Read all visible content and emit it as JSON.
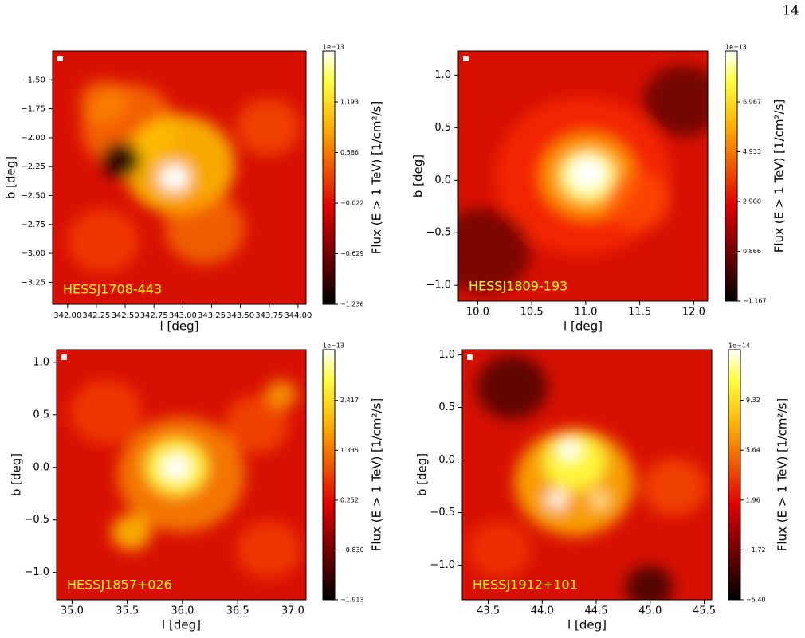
{
  "page_number": "14",
  "chart_data": [
    {
      "type": "heatmap",
      "source": "HESSJ1708-443",
      "xlabel": "l [deg]",
      "ylabel": "b [deg]",
      "colorbar_label": "Flux (E > 1 TeV) [1/cm²/s]",
      "colorbar_offset": "1e−13",
      "xlim": [
        341.87,
        344.07
      ],
      "ylim": [
        -3.44,
        -1.25
      ],
      "xticks": [
        {
          "value": 342,
          "label": "342.00"
        },
        {
          "value": 342.25,
          "label": "342.25"
        },
        {
          "value": 342.5,
          "label": "342.50"
        },
        {
          "value": 342.75,
          "label": "342.75"
        },
        {
          "value": 343,
          "label": "343.00"
        },
        {
          "value": 343.25,
          "label": "343.25"
        },
        {
          "value": 343.5,
          "label": "343.50"
        },
        {
          "value": 343.75,
          "label": "343.75"
        },
        {
          "value": 344,
          "label": "344.00"
        }
      ],
      "yticks": [
        {
          "value": -1.5,
          "label": "−1.50"
        },
        {
          "value": -1.75,
          "label": "−1.75"
        },
        {
          "value": -2,
          "label": "−2.00"
        },
        {
          "value": -2.25,
          "label": "−2.25"
        },
        {
          "value": -2.5,
          "label": "−2.50"
        },
        {
          "value": -2.75,
          "label": "−2.75"
        },
        {
          "value": -3,
          "label": "−3.00"
        },
        {
          "value": -3.25,
          "label": "−3.25"
        }
      ],
      "clim": [
        -1.236,
        1.805
      ],
      "cticks": [
        {
          "value": -1.236,
          "label": "−1.236"
        },
        {
          "value": -0.629,
          "label": "−0.629"
        },
        {
          "value": -0.022,
          "label": "−0.022"
        },
        0.586,
        1.193
      ]
    },
    {
      "type": "heatmap",
      "source": "HESSJ1809-193",
      "xlabel": "l [deg]",
      "ylabel": "b [deg]",
      "colorbar_label": "Flux (E > 1 TeV) [1/cm²/s]",
      "colorbar_offset": "1e−13",
      "xlim": [
        9.82,
        12.13
      ],
      "ylim": [
        -1.15,
        1.23
      ],
      "xticks": [
        {
          "value": 10,
          "label": "10.0"
        },
        10.5,
        {
          "value": 11,
          "label": "11.0"
        },
        11.5,
        {
          "value": 12,
          "label": "12.0"
        }
      ],
      "yticks": [
        {
          "value": -1,
          "label": "−1.0"
        },
        {
          "value": -0.5,
          "label": "−0.5"
        },
        {
          "value": 0,
          "label": "0.0"
        },
        0.5,
        {
          "value": 1,
          "label": "1.0"
        }
      ],
      "clim": [
        -1.167,
        9.05
      ],
      "cticks": [
        {
          "value": -1.167,
          "label": "−1.167"
        },
        0.866,
        {
          "value": 2.9,
          "label": "2.900"
        },
        4.933,
        6.967
      ]
    },
    {
      "type": "heatmap",
      "source": "HESSJ1857+026",
      "xlabel": "l [deg]",
      "ylabel": "b [deg]",
      "colorbar_label": "Flux (E > 1 TeV) [1/cm²/s]",
      "colorbar_offset": "1e−13",
      "xlim": [
        34.86,
        37.12
      ],
      "ylim": [
        -1.26,
        1.12
      ],
      "xticks": [
        {
          "value": 35,
          "label": "35.0"
        },
        35.5,
        {
          "value": 36,
          "label": "36.0"
        },
        36.5,
        {
          "value": 37,
          "label": "37.0"
        }
      ],
      "yticks": [
        {
          "value": -1,
          "label": "−1.0"
        },
        {
          "value": -0.5,
          "label": "−0.5"
        },
        {
          "value": 0,
          "label": "0.0"
        },
        0.5,
        {
          "value": 1,
          "label": "1.0"
        }
      ],
      "clim": [
        -1.913,
        3.52
      ],
      "cticks": [
        {
          "value": -1.913,
          "label": "−1.913"
        },
        {
          "value": -0.83,
          "label": "−0.830"
        },
        0.252,
        1.335,
        2.417
      ]
    },
    {
      "type": "heatmap",
      "source": "HESSJ1912+101",
      "xlabel": "l [deg]",
      "ylabel": "b [deg]",
      "colorbar_label": "Flux (E > 1 TeV) [1/cm²/s]",
      "colorbar_offset": "1e−14",
      "xlim": [
        43.26,
        45.57
      ],
      "ylim": [
        -1.33,
        1.05
      ],
      "xticks": [
        43.5,
        {
          "value": 44,
          "label": "44.0"
        },
        44.5,
        {
          "value": 45,
          "label": "45.0"
        },
        45.5
      ],
      "yticks": [
        {
          "value": -1,
          "label": "−1.0"
        },
        {
          "value": -0.5,
          "label": "−0.5"
        },
        {
          "value": 0,
          "label": "0.0"
        },
        0.5,
        {
          "value": 1,
          "label": "1.0"
        }
      ],
      "clim": [
        -5.4,
        13.06
      ],
      "cticks": [
        {
          "value": -5.4,
          "label": "−5.40"
        },
        {
          "value": -1.72,
          "label": "−1.72"
        },
        1.96,
        5.64,
        9.32
      ]
    }
  ]
}
